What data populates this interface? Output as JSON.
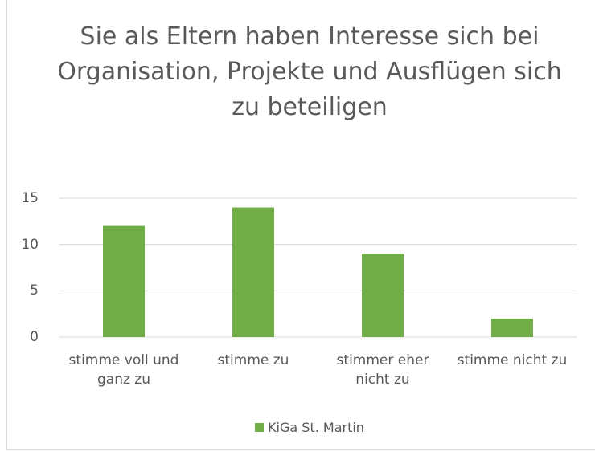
{
  "chart_data": {
    "type": "bar",
    "title": "Sie als Eltern haben Interesse sich bei Organisation, Projekte und Ausflügen sich zu beteiligen",
    "categories": [
      "stimme voll und ganz zu",
      "stimme zu",
      "stimmer eher nicht zu",
      "stimme nicht zu"
    ],
    "series": [
      {
        "name": "KiGa St. Martin",
        "color": "#70ad47",
        "values": [
          12,
          14,
          9,
          2
        ]
      }
    ],
    "ylim": [
      0,
      15
    ],
    "yticks": [
      0,
      5,
      10,
      15
    ],
    "grid": true,
    "legend": "bottom"
  }
}
